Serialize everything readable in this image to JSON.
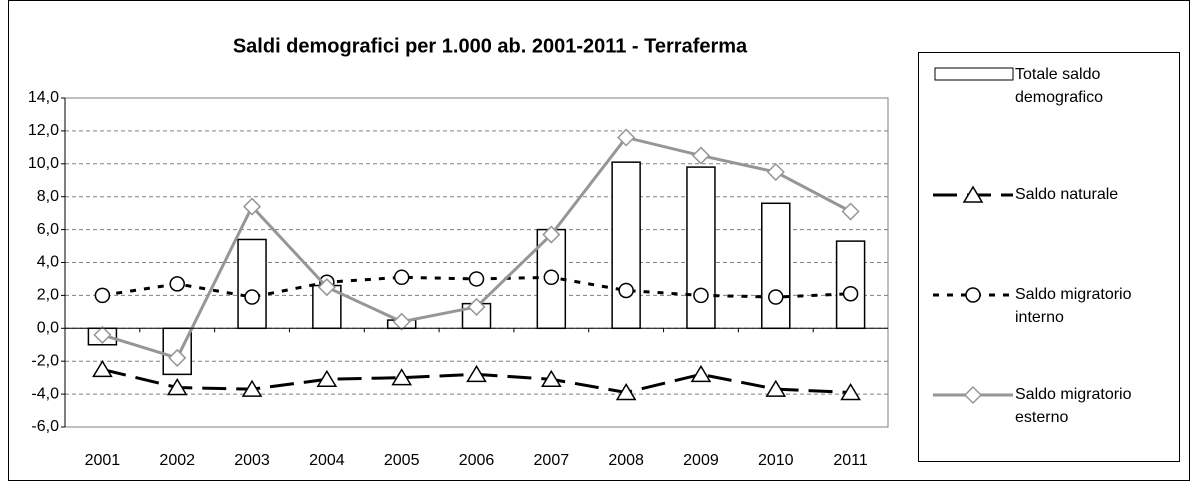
{
  "chart_data": {
    "type": "bar-line",
    "title": "Saldi demografici per 1.000 ab. 2001-2011 - Terraferma",
    "categories": [
      "2001",
      "2002",
      "2003",
      "2004",
      "2005",
      "2006",
      "2007",
      "2008",
      "2009",
      "2010",
      "2011"
    ],
    "series": [
      {
        "name": "Totale saldo demografico",
        "type": "bar",
        "color": "#000000",
        "values": [
          -1.0,
          -2.8,
          5.4,
          2.6,
          0.5,
          1.5,
          6.0,
          10.1,
          9.8,
          7.6,
          5.3
        ]
      },
      {
        "name": "Saldo naturale",
        "type": "line",
        "marker": "triangle",
        "dash": "dash",
        "color": "#000000",
        "values": [
          -2.5,
          -3.6,
          -3.7,
          -3.1,
          -3.0,
          -2.8,
          -3.1,
          -3.9,
          -2.8,
          -3.7,
          -3.9
        ]
      },
      {
        "name": "Saldo migratorio interno",
        "type": "line",
        "marker": "circle",
        "dash": "dot",
        "color": "#000000",
        "values": [
          2.0,
          2.7,
          1.9,
          2.8,
          3.1,
          3.0,
          3.1,
          2.3,
          2.0,
          1.9,
          2.1
        ]
      },
      {
        "name": "Saldo migratorio esterno",
        "type": "line",
        "marker": "diamond",
        "dash": "solid",
        "color": "#969696",
        "values": [
          -0.4,
          -1.8,
          7.4,
          2.5,
          0.4,
          1.3,
          5.7,
          11.6,
          10.5,
          9.5,
          7.1
        ]
      }
    ],
    "ylim": [
      -6,
      14
    ],
    "yticks": [
      {
        "value": -6,
        "label": "-6,0"
      },
      {
        "value": -4,
        "label": "-4,0"
      },
      {
        "value": -2,
        "label": "-2,0"
      },
      {
        "value": 0,
        "label": "0,0"
      },
      {
        "value": 2,
        "label": "2,0"
      },
      {
        "value": 4,
        "label": "4,0"
      },
      {
        "value": 6,
        "label": "6,0"
      },
      {
        "value": 8,
        "label": "8,0"
      },
      {
        "value": 10,
        "label": "10,0"
      },
      {
        "value": 12,
        "label": "12,0"
      },
      {
        "value": 14,
        "label": "14,0"
      }
    ],
    "grid": true
  }
}
